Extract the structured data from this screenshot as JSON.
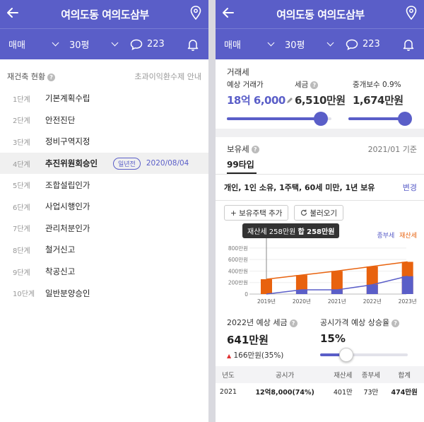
{
  "header": {
    "title": "여의도동 여의도삼부",
    "deal_type": "매매",
    "size": "30평",
    "comment_count": "223"
  },
  "left": {
    "section_title": "재건축 현황",
    "section_link": "초과이익환수제 안내",
    "stages": [
      {
        "level": "1단계",
        "name": "기본계획수립"
      },
      {
        "level": "2단계",
        "name": "안전진단"
      },
      {
        "level": "3단계",
        "name": "정비구역지정"
      },
      {
        "level": "4단계",
        "name": "추진위원회승인",
        "badge": "일년전",
        "date": "2020/08/04"
      },
      {
        "level": "5단계",
        "name": "조합설립인가"
      },
      {
        "level": "6단계",
        "name": "사업시행인가"
      },
      {
        "level": "7단계",
        "name": "관리처분인가"
      },
      {
        "level": "8단계",
        "name": "철거신고"
      },
      {
        "level": "9단계",
        "name": "착공신고"
      },
      {
        "level": "10단계",
        "name": "일반분양승인"
      }
    ]
  },
  "right": {
    "tax_title": "거래세",
    "expected_price_label": "예상 거래가",
    "expected_price": "18억 6,000",
    "tax_label": "세금",
    "tax_value": "6,510만원",
    "broker_label": "중개보수 0.9%",
    "broker_value": "1,674만원",
    "price_slider_level": 0.9,
    "broker_slider_level": 0.95,
    "hold_title": "보유세",
    "hold_date": "2021/01 기준",
    "type_tab": "99타입",
    "condition": "개인, 1인 소유, 1주택, 60세 미만, 1년 보유",
    "change_label": "변경",
    "add_button": "+ 보유주택 추가",
    "load_button": "불러오기",
    "tooltip_a": "재산세 258만원",
    "tooltip_b": "합 258만원",
    "legend_a": "종부세",
    "legend_b": "재산세",
    "summary_label": "2022년 예상 세금",
    "summary_value": "641만원",
    "summary_change": "166만원(35%)",
    "rate_label": "공시가격 예상 상승율",
    "rate_value": "15%",
    "rate_slider_level": 0.3,
    "table_headers": [
      "년도",
      "공시가",
      "재산세",
      "종부세",
      "합계"
    ],
    "table_rows": [
      [
        "2021",
        "12억8,000(74%)",
        "401만",
        "73만",
        "474만원"
      ]
    ]
  },
  "colors": {
    "accent": "#5a5ec8",
    "orange": "#e8620e",
    "up": "#e03131"
  },
  "chart_data": {
    "type": "bar",
    "categories": [
      "2019년",
      "2020년",
      "2021년",
      "2022년",
      "2023년"
    ],
    "series": [
      {
        "name": "재산세",
        "values": [
          258,
          330,
          401,
          480,
          560
        ]
      },
      {
        "name": "종부세",
        "values": [
          0,
          73,
          73,
          161,
          310
        ]
      }
    ],
    "ytick_labels": [
      "0",
      "200만원",
      "400만원",
      "600만원",
      "800만원"
    ],
    "ylim": [
      0,
      860
    ]
  }
}
